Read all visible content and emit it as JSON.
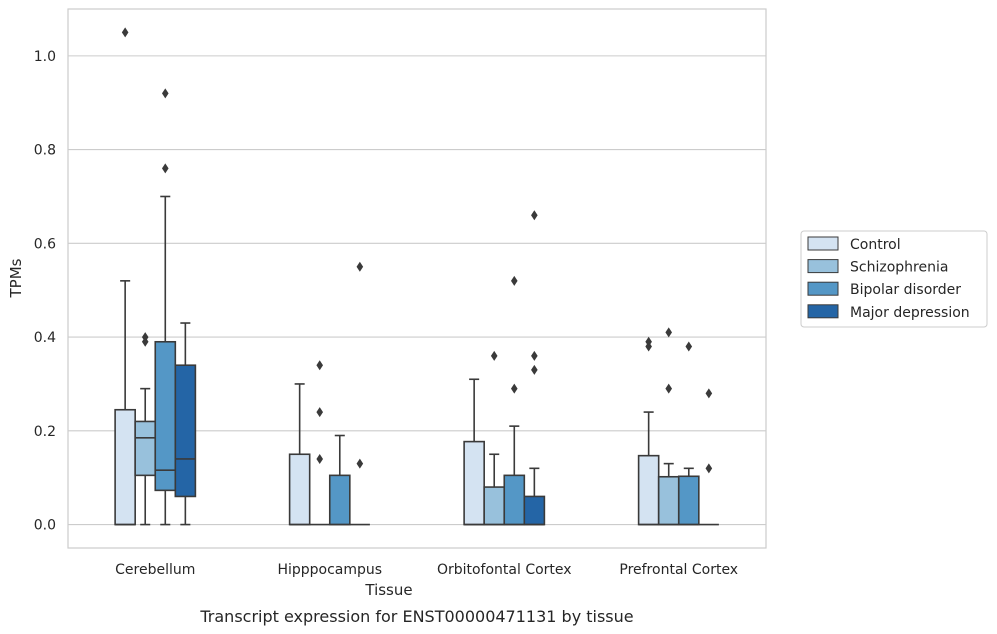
{
  "chart_data": {
    "type": "box",
    "xlabel": "Tissue",
    "ylabel": "TPMs",
    "caption": "Transcript expression for ENST00000471131 by tissue",
    "ylim": [
      -0.05,
      1.1
    ],
    "yticks": [
      0.0,
      0.2,
      0.4,
      0.6,
      0.8,
      1.0
    ],
    "ytick_labels": [
      "0.0",
      "0.2",
      "0.4",
      "0.6",
      "0.8",
      "1.0"
    ],
    "grid": "horizontal",
    "legend_position": "right",
    "categories": [
      "Cerebellum",
      "Hipppocampus",
      "Orbitofontal Cortex",
      "Prefrontal Cortex"
    ],
    "series": [
      {
        "name": "Control",
        "color": "#d4e3f2",
        "boxes": [
          {
            "whislo": 0.0,
            "q1": 0.0,
            "med": 0.0,
            "q3": 0.245,
            "whishi": 0.52,
            "fliers": [
              1.05
            ]
          },
          {
            "whislo": 0.0,
            "q1": 0.0,
            "med": 0.0,
            "q3": 0.15,
            "whishi": 0.3,
            "fliers": []
          },
          {
            "whislo": 0.0,
            "q1": 0.0,
            "med": 0.0,
            "q3": 0.177,
            "whishi": 0.31,
            "fliers": []
          },
          {
            "whislo": 0.0,
            "q1": 0.0,
            "med": 0.0,
            "q3": 0.147,
            "whishi": 0.24,
            "fliers": [
              0.38,
              0.39
            ]
          }
        ]
      },
      {
        "name": "Schizophrenia",
        "color": "#98c1dc",
        "boxes": [
          {
            "whislo": 0.0,
            "q1": 0.105,
            "med": 0.185,
            "q3": 0.22,
            "whishi": 0.29,
            "fliers": [
              0.39,
              0.4
            ]
          },
          {
            "whislo": 0.0,
            "q1": 0.0,
            "med": 0.0,
            "q3": 0.0,
            "whishi": 0.0,
            "fliers": [
              0.14,
              0.24,
              0.34
            ]
          },
          {
            "whislo": 0.0,
            "q1": 0.0,
            "med": 0.0,
            "q3": 0.08,
            "whishi": 0.15,
            "fliers": [
              0.36
            ]
          },
          {
            "whislo": 0.0,
            "q1": 0.0,
            "med": 0.0,
            "q3": 0.102,
            "whishi": 0.13,
            "fliers": [
              0.29,
              0.41
            ]
          }
        ]
      },
      {
        "name": "Bipolar disorder",
        "color": "#5497c6",
        "boxes": [
          {
            "whislo": 0.0,
            "q1": 0.073,
            "med": 0.116,
            "q3": 0.39,
            "whishi": 0.7,
            "fliers": [
              0.76,
              0.92
            ]
          },
          {
            "whislo": 0.0,
            "q1": 0.0,
            "med": 0.0,
            "q3": 0.105,
            "whishi": 0.19,
            "fliers": []
          },
          {
            "whislo": 0.0,
            "q1": 0.0,
            "med": 0.0,
            "q3": 0.105,
            "whishi": 0.21,
            "fliers": [
              0.29,
              0.52
            ]
          },
          {
            "whislo": 0.0,
            "q1": 0.0,
            "med": 0.0,
            "q3": 0.103,
            "whishi": 0.12,
            "fliers": [
              0.38
            ]
          }
        ]
      },
      {
        "name": "Major depression",
        "color": "#2465a6",
        "boxes": [
          {
            "whislo": 0.0,
            "q1": 0.06,
            "med": 0.14,
            "q3": 0.34,
            "whishi": 0.43,
            "fliers": []
          },
          {
            "whislo": 0.0,
            "q1": 0.0,
            "med": 0.0,
            "q3": 0.0,
            "whishi": 0.0,
            "fliers": [
              0.13,
              0.55
            ]
          },
          {
            "whislo": 0.0,
            "q1": 0.0,
            "med": 0.0,
            "q3": 0.06,
            "whishi": 0.12,
            "fliers": [
              0.33,
              0.36,
              0.66
            ]
          },
          {
            "whislo": 0.0,
            "q1": 0.0,
            "med": 0.0,
            "q3": 0.0,
            "whishi": 0.0,
            "fliers": [
              0.12,
              0.28
            ]
          }
        ]
      }
    ]
  }
}
